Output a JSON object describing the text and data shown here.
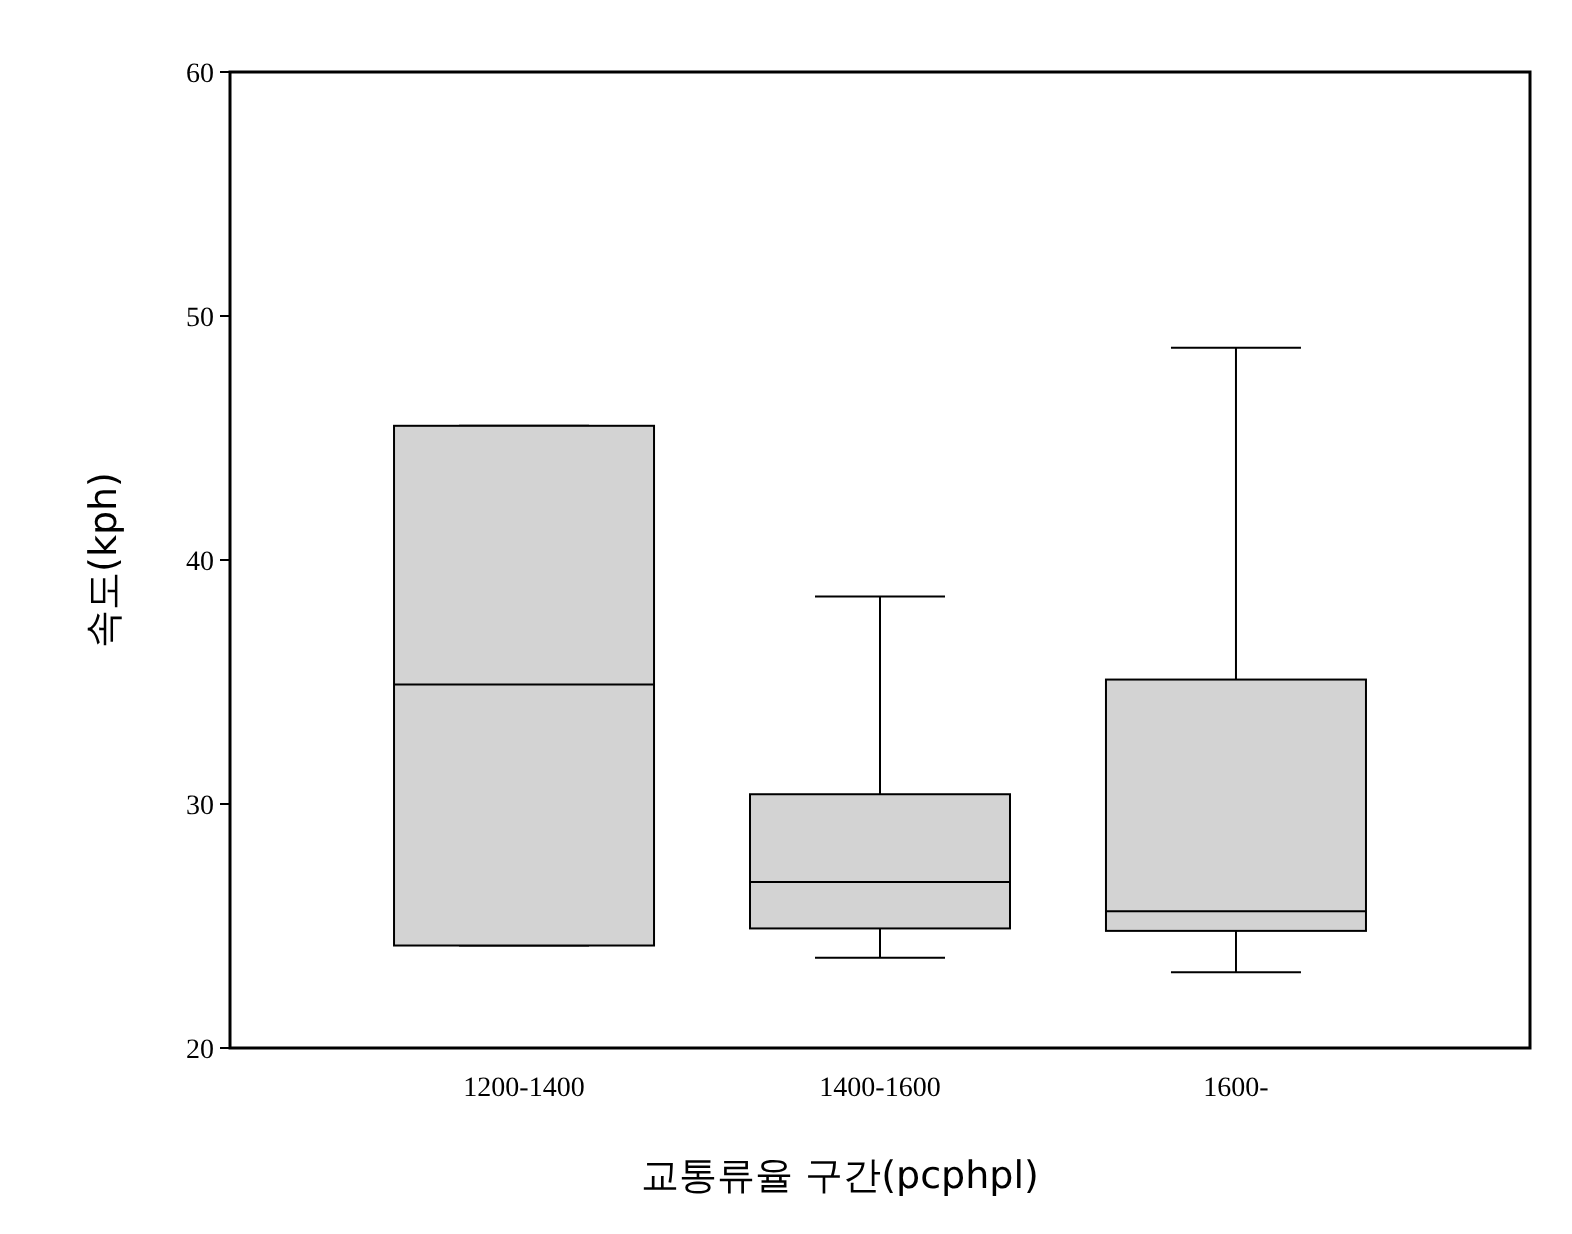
{
  "chart_data": {
    "type": "box",
    "xlabel": "교통류율 구간(pcphpl)",
    "ylabel": "속도(kph)",
    "categories": [
      "1200-1400",
      "1400-1600",
      "1600-"
    ],
    "series": [
      {
        "color": "#d3d3d3",
        "boxes": [
          {
            "low": 24.2,
            "q1": 24.2,
            "median": 34.9,
            "q3": 45.5,
            "high": 45.5
          },
          {
            "low": 23.7,
            "q1": 24.9,
            "median": 26.8,
            "q3": 30.4,
            "high": 38.5
          },
          {
            "low": 23.1,
            "q1": 24.8,
            "median": 25.6,
            "q3": 35.1,
            "high": 48.7
          }
        ]
      }
    ],
    "ylim": [
      20,
      60
    ],
    "yticks": [
      20,
      30,
      40,
      50,
      60
    ],
    "grid": false
  }
}
